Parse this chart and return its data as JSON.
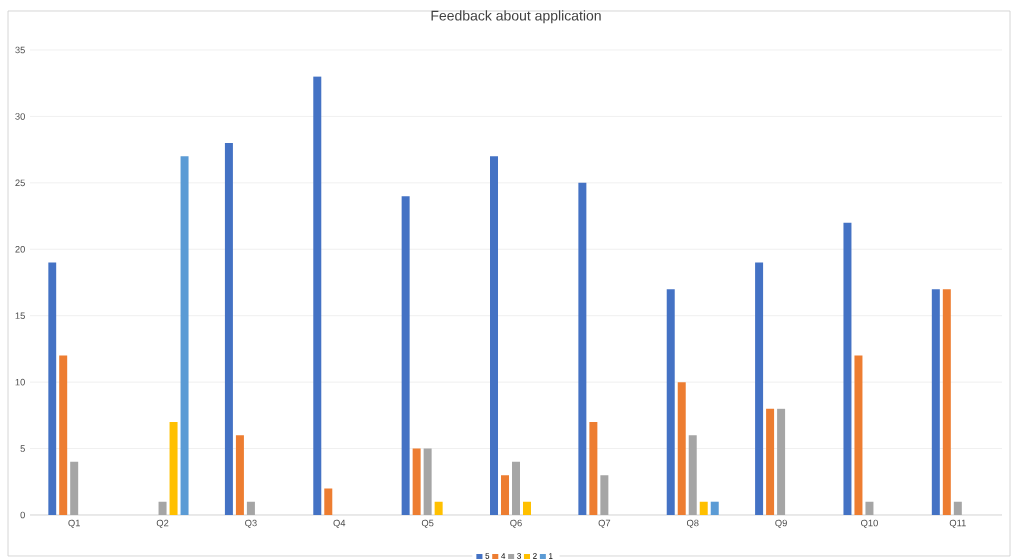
{
  "chart_data": {
    "type": "bar",
    "title": "Feedback about application",
    "categories": [
      "Q1",
      "Q2",
      "Q3",
      "Q4",
      "Q5",
      "Q6",
      "Q7",
      "Q8",
      "Q9",
      "Q10",
      "Q11"
    ],
    "series": [
      {
        "name": "5",
        "color": "#4472c4",
        "values": [
          19,
          0,
          28,
          33,
          24,
          27,
          25,
          17,
          19,
          22,
          17
        ]
      },
      {
        "name": "4",
        "color": "#ed7d31",
        "values": [
          12,
          0,
          6,
          2,
          5,
          3,
          7,
          10,
          8,
          12,
          17
        ]
      },
      {
        "name": "3",
        "color": "#a5a5a5",
        "values": [
          4,
          1,
          1,
          0,
          5,
          4,
          3,
          6,
          8,
          1,
          1
        ]
      },
      {
        "name": "2",
        "color": "#ffc000",
        "values": [
          0,
          7,
          0,
          0,
          1,
          1,
          0,
          1,
          0,
          0,
          0
        ]
      },
      {
        "name": "1",
        "color": "#5b9bd5",
        "values": [
          0,
          27,
          0,
          0,
          0,
          0,
          0,
          1,
          0,
          0,
          0
        ]
      }
    ],
    "ylim": [
      0,
      35
    ],
    "yticks": [
      0,
      5,
      10,
      15,
      20,
      25,
      30,
      35
    ],
    "grid": "y",
    "legend": "bottom"
  }
}
